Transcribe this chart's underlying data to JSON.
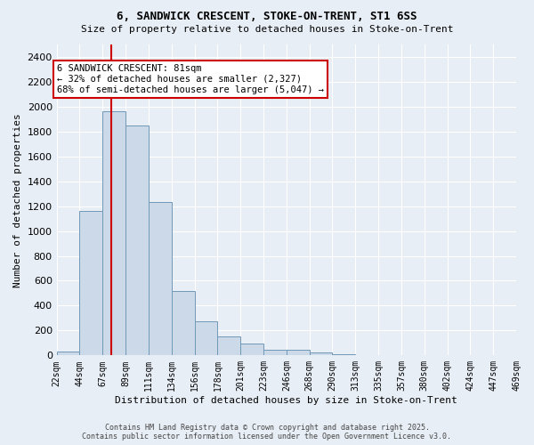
{
  "title1": "6, SANDWICK CRESCENT, STOKE-ON-TRENT, ST1 6SS",
  "title2": "Size of property relative to detached houses in Stoke-on-Trent",
  "xlabel": "Distribution of detached houses by size in Stoke-on-Trent",
  "ylabel": "Number of detached properties",
  "bar_color": "#ccd9e8",
  "bar_edge_color": "#7098b8",
  "background_color": "#e8eef5",
  "grid_color": "#ffffff",
  "bin_labels": [
    "22sqm",
    "44sqm",
    "67sqm",
    "89sqm",
    "111sqm",
    "134sqm",
    "156sqm",
    "178sqm",
    "201sqm",
    "223sqm",
    "246sqm",
    "268sqm",
    "290sqm",
    "313sqm",
    "335sqm",
    "357sqm",
    "380sqm",
    "402sqm",
    "424sqm",
    "447sqm",
    "469sqm"
  ],
  "bin_edges": [
    0,
    1,
    2,
    3,
    4,
    5,
    6,
    7,
    8,
    9,
    10,
    11,
    12,
    13,
    14,
    15,
    16,
    17,
    18,
    19,
    20
  ],
  "bar_heights": [
    30,
    1160,
    1960,
    1850,
    1230,
    520,
    275,
    155,
    95,
    45,
    45,
    25,
    10,
    5,
    5,
    5,
    5,
    5,
    5,
    5
  ],
  "property_size_bin": 2.36,
  "annotation_text": "6 SANDWICK CRESCENT: 81sqm\n← 32% of detached houses are smaller (2,327)\n68% of semi-detached houses are larger (5,047) →",
  "annotation_box_color": "#ffffff",
  "annotation_box_edge_color": "#cc0000",
  "vline_color": "#cc0000",
  "ylim": [
    0,
    2500
  ],
  "yticks": [
    0,
    200,
    400,
    600,
    800,
    1000,
    1200,
    1400,
    1600,
    1800,
    2000,
    2200,
    2400
  ],
  "footer1": "Contains HM Land Registry data © Crown copyright and database right 2025.",
  "footer2": "Contains public sector information licensed under the Open Government Licence v3.0."
}
